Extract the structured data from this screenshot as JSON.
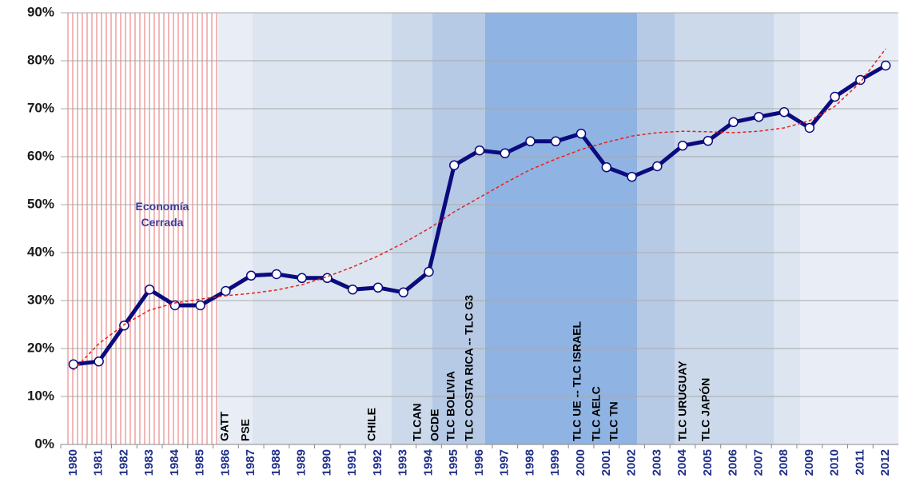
{
  "chart_data": {
    "type": "line",
    "categories": [
      "1980",
      "1981",
      "1982",
      "1983",
      "1984",
      "1985",
      "1986",
      "1987",
      "1988",
      "1989",
      "1990",
      "1991",
      "1992",
      "1993",
      "1994",
      "1995",
      "1996",
      "1997",
      "1998",
      "1999",
      "2000",
      "2001",
      "2002",
      "2003",
      "2004",
      "2005",
      "2006",
      "2007",
      "2008",
      "2009",
      "2010",
      "2011",
      "2012"
    ],
    "series": [
      {
        "color": "#0b0b7e",
        "values": [
          16.7,
          17.3,
          24.8,
          32.3,
          29,
          29,
          32,
          35.2,
          35.5,
          34.7,
          34.7,
          32.3,
          32.7,
          31.7,
          36,
          58.2,
          61.3,
          60.7,
          63.2,
          63.2,
          64.8,
          57.8,
          55.8,
          58,
          62.3,
          63.3,
          67.2,
          68.3,
          69.3,
          66,
          72.5,
          76,
          79
        ]
      },
      {
        "color": "#e8201a",
        "dashed": true,
        "values": [
          15.5,
          21,
          25,
          28,
          29.5,
          30.3,
          31,
          31.5,
          32.2,
          33.3,
          35,
          37,
          39.3,
          42,
          45,
          48.5,
          51.5,
          54.5,
          57.3,
          59.5,
          61.5,
          63,
          64.3,
          65,
          65.3,
          65.2,
          65,
          65.3,
          66,
          67.5,
          70.5,
          75.5,
          82.5
        ]
      }
    ],
    "ylim": [
      0,
      90
    ],
    "yticks": [
      {
        "value": 0,
        "label": "0%"
      },
      {
        "value": 10,
        "label": "10%"
      },
      {
        "value": 20,
        "label": "20%"
      },
      {
        "value": 30,
        "label": "30%"
      },
      {
        "value": 40,
        "label": "40%"
      },
      {
        "value": 50,
        "label": "50%"
      },
      {
        "value": 60,
        "label": "60%"
      },
      {
        "value": 70,
        "label": "70%"
      },
      {
        "value": 80,
        "label": "80%"
      },
      {
        "value": 90,
        "label": "90%"
      }
    ],
    "grid": true,
    "region_label": [
      "Economía",
      "Cerrada"
    ],
    "annotations": [
      "GATT",
      "PSE",
      "CHILE",
      "TLCAN",
      "OCDE",
      "TLC BOLIVIA",
      "TLC COSTA RICA -- TLC G3",
      "TLC UE -- TLC ISRAEL",
      "TLC  AELC",
      "TLC  TN",
      "TLC URUGUAY",
      "TLC JAPÓN"
    ]
  }
}
